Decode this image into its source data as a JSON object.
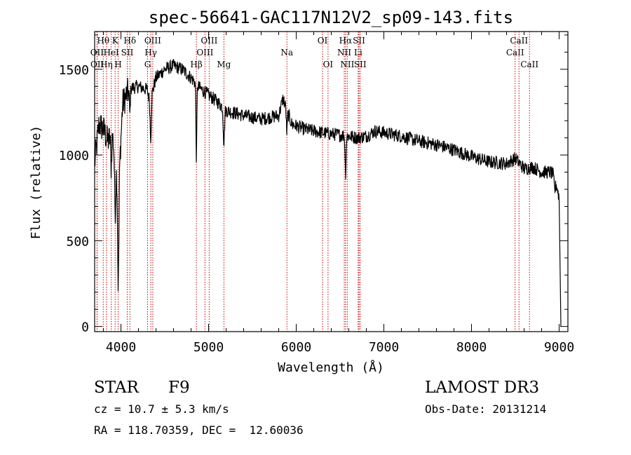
{
  "chart_data": {
    "type": "line",
    "title": "spec-56641-GAC117N12V2_sp09-143.fits",
    "xlabel": "Wavelength (Å)",
    "ylabel": "Flux (relative)",
    "xlim": [
      3700,
      9100
    ],
    "ylim": [
      -30,
      1720
    ],
    "x_ticks": [
      4000,
      5000,
      6000,
      7000,
      8000,
      9000
    ],
    "y_ticks": [
      0,
      500,
      1000,
      1500
    ],
    "series_color": "#000000",
    "line_color": "#cc0000",
    "continuum_knots": [
      [
        3700,
        950
      ],
      [
        3750,
        1180
      ],
      [
        3800,
        1150
      ],
      [
        3850,
        1080
      ],
      [
        3900,
        1120
      ],
      [
        3930,
        1020
      ],
      [
        3960,
        880
      ],
      [
        3975,
        760
      ],
      [
        3990,
        1000
      ],
      [
        4020,
        1300
      ],
      [
        4100,
        1390
      ],
      [
        4200,
        1400
      ],
      [
        4300,
        1380
      ],
      [
        4330,
        1310
      ],
      [
        4400,
        1450
      ],
      [
        4500,
        1500
      ],
      [
        4600,
        1520
      ],
      [
        4700,
        1500
      ],
      [
        4800,
        1450
      ],
      [
        4900,
        1390
      ],
      [
        5000,
        1350
      ],
      [
        5100,
        1310
      ],
      [
        5200,
        1260
      ],
      [
        5400,
        1230
      ],
      [
        5600,
        1210
      ],
      [
        5800,
        1230
      ],
      [
        5850,
        1330
      ],
      [
        5880,
        1280
      ],
      [
        5950,
        1180
      ],
      [
        6100,
        1150
      ],
      [
        6300,
        1130
      ],
      [
        6450,
        1120
      ],
      [
        6600,
        1110
      ],
      [
        6700,
        1100
      ],
      [
        6800,
        1110
      ],
      [
        6900,
        1140
      ],
      [
        7000,
        1130
      ],
      [
        7200,
        1110
      ],
      [
        7400,
        1080
      ],
      [
        7600,
        1060
      ],
      [
        7800,
        1030
      ],
      [
        8000,
        990
      ],
      [
        8200,
        960
      ],
      [
        8400,
        950
      ],
      [
        8500,
        980
      ],
      [
        8600,
        920
      ],
      [
        8700,
        930
      ],
      [
        8800,
        900
      ],
      [
        8900,
        900
      ],
      [
        8950,
        880
      ],
      [
        9000,
        750
      ],
      [
        9020,
        0
      ]
    ],
    "absorption_lines": [
      {
        "wave": 3968,
        "depth": 420,
        "width": 10
      },
      {
        "wave": 3934,
        "depth": 320,
        "width": 10
      },
      {
        "wave": 3889,
        "depth": 180,
        "width": 8
      },
      {
        "wave": 3970,
        "depth": 150,
        "width": 8
      },
      {
        "wave": 4101,
        "depth": 150,
        "width": 8
      },
      {
        "wave": 4340,
        "depth": 230,
        "width": 9
      },
      {
        "wave": 4861,
        "depth": 430,
        "width": 7
      },
      {
        "wave": 5175,
        "depth": 200,
        "width": 10
      },
      {
        "wave": 5893,
        "depth": 130,
        "width": 8
      },
      {
        "wave": 6563,
        "depth": 220,
        "width": 8
      },
      {
        "wave": 8950,
        "depth": 80,
        "width": 12
      }
    ],
    "noise_amplitude": 40,
    "line_markers": [
      {
        "wave": 3727,
        "label": "OII",
        "row": 2
      },
      {
        "wave": 3729,
        "label": "OII",
        "row": 3
      },
      {
        "wave": 3798,
        "label": "Hθ",
        "row": 1
      },
      {
        "wave": 3835,
        "label": "Hη",
        "row": 3
      },
      {
        "wave": 3889,
        "label": "HeI",
        "row": 2
      },
      {
        "wave": 3934,
        "label": "K",
        "row": 1
      },
      {
        "wave": 3968,
        "label": "H",
        "row": 3
      },
      {
        "wave": 4072,
        "label": "SII",
        "row": 2
      },
      {
        "wave": 4102,
        "label": "Hδ",
        "row": 1
      },
      {
        "wave": 4304,
        "label": "G",
        "row": 3
      },
      {
        "wave": 4341,
        "label": "Hγ",
        "row": 2
      },
      {
        "wave": 4363,
        "label": "OIII",
        "row": 1
      },
      {
        "wave": 4861,
        "label": "Hβ",
        "row": 3
      },
      {
        "wave": 4959,
        "label": "OIII",
        "row": 2
      },
      {
        "wave": 5007,
        "label": "OIII",
        "row": 1
      },
      {
        "wave": 5175,
        "label": "Mg",
        "row": 3
      },
      {
        "wave": 5894,
        "label": "Na",
        "row": 2
      },
      {
        "wave": 6300,
        "label": "OI",
        "row": 1
      },
      {
        "wave": 6363,
        "label": "OI",
        "row": 3
      },
      {
        "wave": 6548,
        "label": "NII",
        "row": 2
      },
      {
        "wave": 6563,
        "label": "Hα",
        "row": 1
      },
      {
        "wave": 6583,
        "label": "NII",
        "row": 3
      },
      {
        "wave": 6707,
        "label": "Li",
        "row": 2
      },
      {
        "wave": 6716,
        "label": "SII",
        "row": 1
      },
      {
        "wave": 6730,
        "label": "SII",
        "row": 3
      },
      {
        "wave": 8498,
        "label": "CaII",
        "row": 2
      },
      {
        "wave": 8542,
        "label": "CaII",
        "row": 1
      },
      {
        "wave": 8662,
        "label": "CaII",
        "row": 3
      }
    ]
  },
  "info": {
    "object_class": "STAR",
    "subclass": "F9",
    "survey": "LAMOST DR3",
    "cz": "cz = 10.7 ± 5.3 km/s",
    "obs_date": "Obs-Date: 20131214",
    "coords": "RA = 118.70359, DEC =  12.60036"
  }
}
